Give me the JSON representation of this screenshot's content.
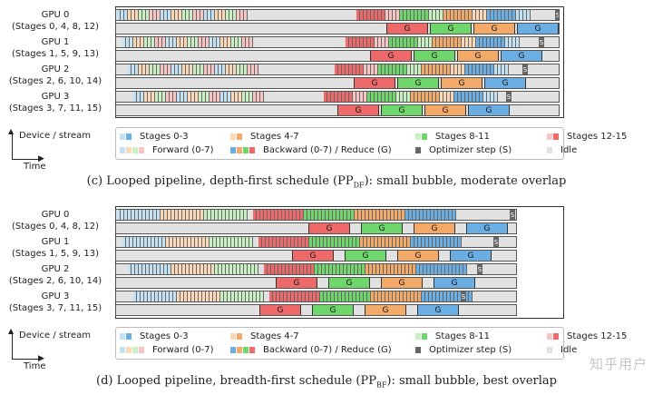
{
  "colors": {
    "stages_0_3_light": "#c5e2f5",
    "stages_0_3_dark": "#6aaee3",
    "stages_4_7_light": "#fbd8b8",
    "stages_4_7_dark": "#f3a968",
    "stages_8_11_light": "#c9f0c3",
    "stages_8_11_dark": "#6ed66a",
    "stages_12_15_light": "#f8c5c5",
    "stages_12_15_dark": "#ee6a6a",
    "optimizer": "#666666",
    "idle": "#e2e2e2"
  },
  "gpus": [
    {
      "name": "GPU 0",
      "stages": "(Stages 0, 4, 8, 12)"
    },
    {
      "name": "GPU 1",
      "stages": "(Stages 1, 5, 9, 13)"
    },
    {
      "name": "GPU 2",
      "stages": "(Stages 2, 6, 10, 14)"
    },
    {
      "name": "GPU 3",
      "stages": "(Stages 3, 7, 11, 15)"
    }
  ],
  "block_labels": {
    "reduce": "G",
    "optimizer": "S"
  },
  "axis": {
    "vertical": "Device / stream",
    "horizontal": "Time"
  },
  "legend": {
    "stages_0_3": "Stages 0-3",
    "stages_4_7": "Stages 4-7",
    "stages_8_11": "Stages 8-11",
    "stages_12_15": "Stages 12-15",
    "forward": "Forward (0-7)",
    "backward": "Backward (0-7) / Reduce (G)",
    "optimizer": "Optimizer step (S)",
    "idle": "Idle"
  },
  "captions": {
    "c": {
      "before": "(c) Looped pipeline, depth-first schedule (PP",
      "sub": "DF",
      "after": "): small bubble, moderate overlap"
    },
    "d": {
      "before": "(d) Looped pipeline, breadth-first schedule (PP",
      "sub": "BF",
      "after": "): small bubble, best overlap"
    }
  },
  "watermark": "知乎用户"
}
